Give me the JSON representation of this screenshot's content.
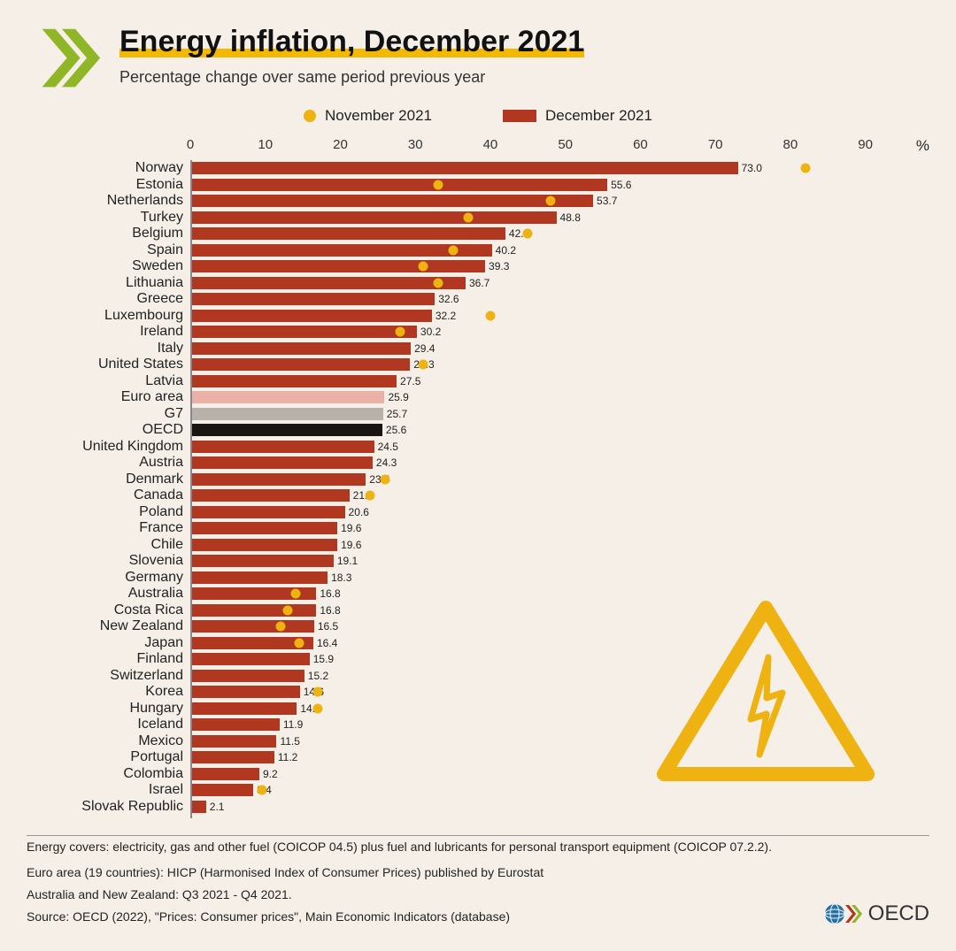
{
  "header": {
    "title": "Energy inflation, December 2021",
    "subtitle": "Percentage change over same period previous year"
  },
  "legend": {
    "nov": {
      "label": "November 2021",
      "color": "#eeb211"
    },
    "dec": {
      "label": "December 2021",
      "color": "#b03720"
    }
  },
  "chart": {
    "type": "bar",
    "xlim": [
      0,
      95
    ],
    "xticks": [
      0,
      10,
      20,
      30,
      40,
      50,
      60,
      70,
      80,
      90
    ],
    "pct_symbol": "%",
    "bar_default_color": "#b03720",
    "nov_marker_color": "#eeb211",
    "special_colors": {
      "Euro area": "#e9b1a8",
      "G7": "#b8b1a9",
      "OECD": "#1a1512"
    },
    "label_fontsize": 16,
    "value_fontsize": 12,
    "axis_fontsize": 15,
    "background_color": "#f5efe8",
    "data": [
      {
        "country": "Norway",
        "dec": 73.0,
        "nov": 82
      },
      {
        "country": "Estonia",
        "dec": 55.6,
        "nov": 33
      },
      {
        "country": "Netherlands",
        "dec": 53.7,
        "nov": 48
      },
      {
        "country": "Turkey",
        "dec": 48.8,
        "nov": 37
      },
      {
        "country": "Belgium",
        "dec": 42.0,
        "nov": 45
      },
      {
        "country": "Spain",
        "dec": 40.2,
        "nov": 35
      },
      {
        "country": "Sweden",
        "dec": 39.3,
        "nov": 31
      },
      {
        "country": "Lithuania",
        "dec": 36.7,
        "nov": 33
      },
      {
        "country": "Greece",
        "dec": 32.6,
        "nov": null
      },
      {
        "country": "Luxembourg",
        "dec": 32.2,
        "nov": 40
      },
      {
        "country": "Ireland",
        "dec": 30.2,
        "nov": 28
      },
      {
        "country": "Italy",
        "dec": 29.4,
        "nov": null
      },
      {
        "country": "United States",
        "dec": 29.3,
        "nov": 31
      },
      {
        "country": "Latvia",
        "dec": 27.5,
        "nov": null
      },
      {
        "country": "Euro area",
        "dec": 25.9,
        "nov": null
      },
      {
        "country": "G7",
        "dec": 25.7,
        "nov": null
      },
      {
        "country": "OECD",
        "dec": 25.6,
        "nov": null
      },
      {
        "country": "United Kingdom",
        "dec": 24.5,
        "nov": null
      },
      {
        "country": "Austria",
        "dec": 24.3,
        "nov": null
      },
      {
        "country": "Denmark",
        "dec": 23.4,
        "nov": 26
      },
      {
        "country": "Canada",
        "dec": 21.2,
        "nov": 24
      },
      {
        "country": "Poland",
        "dec": 20.6,
        "nov": null
      },
      {
        "country": "France",
        "dec": 19.6,
        "nov": null
      },
      {
        "country": "Chile",
        "dec": 19.6,
        "nov": null
      },
      {
        "country": "Slovenia",
        "dec": 19.1,
        "nov": null
      },
      {
        "country": "Germany",
        "dec": 18.3,
        "nov": null
      },
      {
        "country": "Australia",
        "dec": 16.8,
        "nov": 14
      },
      {
        "country": "Costa Rica",
        "dec": 16.8,
        "nov": 13
      },
      {
        "country": "New Zealand",
        "dec": 16.5,
        "nov": 12
      },
      {
        "country": "Japan",
        "dec": 16.4,
        "nov": 14.5
      },
      {
        "country": "Finland",
        "dec": 15.9,
        "nov": null
      },
      {
        "country": "Switzerland",
        "dec": 15.2,
        "nov": null
      },
      {
        "country": "Korea",
        "dec": 14.6,
        "nov": 17
      },
      {
        "country": "Hungary",
        "dec": 14.2,
        "nov": 17
      },
      {
        "country": "Iceland",
        "dec": 11.9,
        "nov": null
      },
      {
        "country": "Mexico",
        "dec": 11.5,
        "nov": null
      },
      {
        "country": "Portugal",
        "dec": 11.2,
        "nov": null
      },
      {
        "country": "Colombia",
        "dec": 9.2,
        "nov": null
      },
      {
        "country": "Israel",
        "dec": 8.4,
        "nov": 9.5
      },
      {
        "country": "Slovak Republic",
        "dec": 2.1,
        "nov": null
      }
    ]
  },
  "footer": {
    "line1": "Energy covers: electricity, gas and other fuel (COICOP 04.5) plus fuel and lubricants for personal transport equipment (COICOP 07.2.2).",
    "line2": "Euro area (19 countries): HICP (Harmonised Index of Consumer Prices) published by Eurostat",
    "line3": "Australia and New Zealand: Q3 2021 - Q4 2021.",
    "source": "Source: OECD (2022), \"Prices: Consumer prices\", Main Economic Indicators (database)",
    "logo_text": "OECD"
  },
  "colors": {
    "underline": "#f5b800",
    "warning": "#eeb211",
    "logo_green": "#8fb627",
    "logo_blue": "#2471a3"
  }
}
